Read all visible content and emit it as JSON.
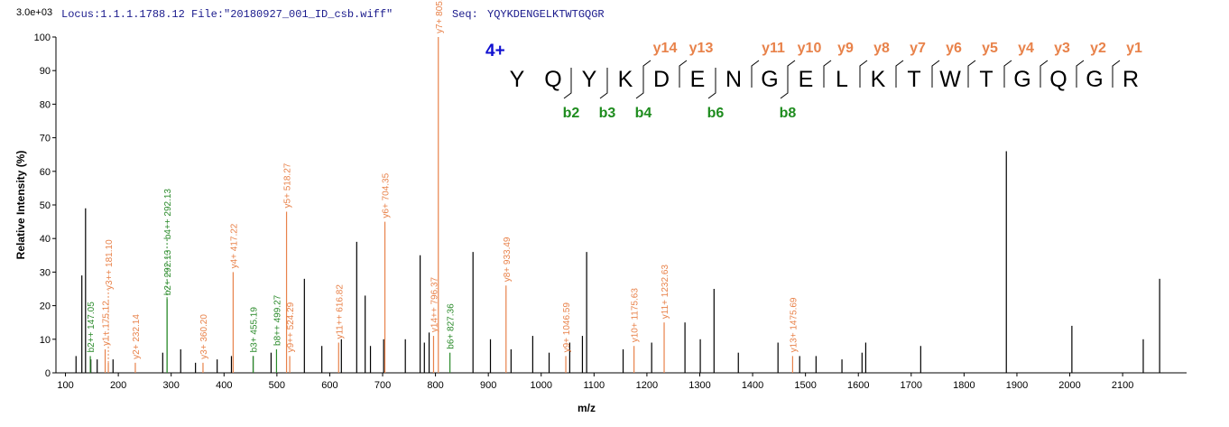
{
  "chart_data": {
    "type": "spectrum",
    "locus": "Locus:1.1.1.1788.12 File:\"20180927_001_ID_csb.wiff\"",
    "seq_label": "Seq:",
    "seq": "YQYKDENGELKTWTGQGR",
    "scale_label": "3.0e+03",
    "y_label": "Relative  Intensity (%)",
    "x_label": "m/z",
    "xlim": [
      82,
      2221
    ],
    "ylim": [
      0,
      100
    ],
    "xticks": [
      100,
      200,
      300,
      400,
      500,
      600,
      700,
      800,
      900,
      1000,
      1100,
      1200,
      1300,
      1400,
      1500,
      1600,
      1700,
      1800,
      1900,
      2000,
      2100
    ],
    "yticks": [
      0,
      10,
      20,
      30,
      40,
      50,
      60,
      70,
      80,
      90,
      100
    ],
    "series": [
      {
        "color": "#000000",
        "x": [
          120,
          131,
          138,
          148,
          160,
          190,
          284,
          318,
          346,
          387,
          414,
          455,
          489,
          552,
          585,
          622,
          651,
          667,
          677,
          702,
          743,
          771,
          779,
          788,
          871,
          904,
          943,
          984,
          1015,
          1054,
          1078,
          1086,
          1155,
          1209,
          1272,
          1301,
          1327,
          1373,
          1448,
          1489,
          1520,
          1569,
          1607,
          1614,
          1718,
          1880,
          2004,
          2139,
          2170
        ],
        "values": [
          5,
          29,
          49,
          4,
          4,
          4,
          6,
          7,
          3,
          4,
          5,
          5,
          6,
          28,
          8,
          10,
          39,
          23,
          8,
          10,
          10,
          35,
          9,
          12,
          36,
          10,
          7,
          11,
          6,
          9,
          11,
          36,
          7,
          9,
          15,
          10,
          25,
          6,
          9,
          5,
          5,
          4,
          6,
          9,
          8,
          66,
          14,
          10,
          28
        ]
      },
      {
        "color": "#e8824a",
        "x": [
          175.12,
          181.1,
          232.14,
          360.2,
          417.22,
          518.27,
          524.29,
          616.82,
          704.35,
          796.37,
          805.39,
          933.49,
          1046.59,
          1175.63,
          1232.63,
          1475.69
        ],
        "values": [
          7,
          3,
          3,
          3,
          30,
          48,
          5,
          9,
          45,
          11,
          100,
          26,
          5,
          8,
          15,
          5
        ],
        "labels": [
          "y1+ 175.12",
          "y3++ 181.10",
          "y2+ 232.14",
          "y3+ 360.20",
          "y4+ 417.22",
          "y5+ 518.27",
          "y9++ 524.29",
          "y11++ 616.82",
          "y6+ 704.35",
          "y14++ 796.37",
          "y7+ 805.39",
          "y8+ 933.49",
          "y9+ 1046.59",
          "y10+ 1175.63",
          "y11+ 1232.63",
          "y13+ 1475.69"
        ]
      },
      {
        "color": "#2a8a2a",
        "x": [
          147.05,
          292.13,
          292.13,
          455.19,
          499.27,
          827.36
        ],
        "values": [
          5,
          22,
          22,
          5,
          7,
          6
        ],
        "labels": [
          "b2++ 147.05",
          "b2+ 292.13",
          "b4++ 292.13",
          "b3+ 455.19",
          "b8++ 499.27",
          "b6+ 827.36"
        ]
      }
    ],
    "fragment_map": {
      "charge": "4+",
      "residues": [
        "Y",
        "Q",
        "Y",
        "K",
        "D",
        "E",
        "N",
        "G",
        "E",
        "L",
        "K",
        "T",
        "W",
        "T",
        "G",
        "Q",
        "G",
        "R"
      ],
      "y_ions": [
        "y14",
        "y13",
        "y11",
        "y10",
        "y9",
        "y8",
        "y7",
        "y6",
        "y5",
        "y4",
        "y3",
        "y2",
        "y1"
      ],
      "b_ions": [
        "b2",
        "b3",
        "b4",
        "b6",
        "b8"
      ],
      "y_color": "#e8824a",
      "b_color": "#1e8c1e",
      "charge_color": "#1010d0"
    }
  }
}
